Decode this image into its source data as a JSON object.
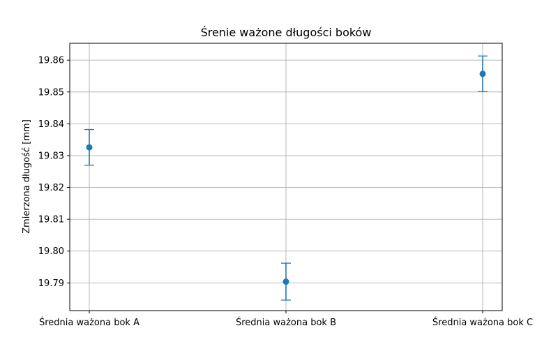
{
  "chart_data": {
    "type": "scatter",
    "title": "Śrenie ważone długości boków",
    "xlabel": "",
    "ylabel": "Zmierzona długość [mm]",
    "categories": [
      "Średnia ważona bok A",
      "Średnia ważona bok B",
      "Średnia ważona bok C"
    ],
    "values": [
      19.8326,
      19.7904,
      19.8557
    ],
    "errors": [
      0.0056,
      0.0058,
      0.0056
    ],
    "ylim": [
      19.7813,
      19.8653
    ],
    "yticks": [
      19.79,
      19.8,
      19.81,
      19.82,
      19.83,
      19.84,
      19.85,
      19.86
    ],
    "ytick_labels": [
      "19.79",
      "19.80",
      "19.81",
      "19.82",
      "19.83",
      "19.84",
      "19.85",
      "19.86"
    ],
    "grid": true,
    "error_bar_caps": true,
    "color": "#1f77b4"
  }
}
